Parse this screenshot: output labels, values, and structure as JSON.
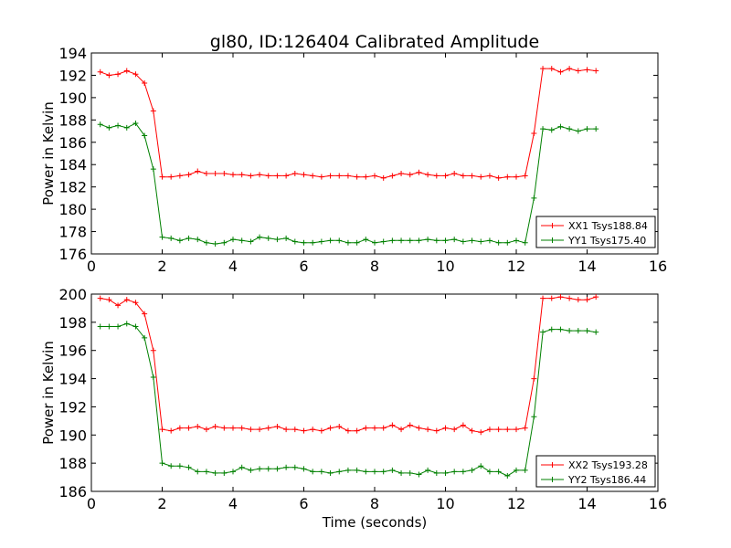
{
  "chart_data": [
    {
      "type": "line",
      "title": "gl80, ID:126404 Calibrated Amplitude",
      "xlabel": "",
      "ylabel": "Power in Kelvin",
      "xlim": [
        0,
        16
      ],
      "ylim": [
        176,
        194
      ],
      "xticks": [
        "0",
        "2",
        "4",
        "6",
        "8",
        "10",
        "12",
        "14",
        "16"
      ],
      "yticks": [
        "176",
        "178",
        "180",
        "182",
        "184",
        "186",
        "188",
        "190",
        "192",
        "194"
      ],
      "grid": false,
      "legend_position": "lower-right",
      "x": [
        0.25,
        0.5,
        0.75,
        1.0,
        1.25,
        1.5,
        1.75,
        2.0,
        2.25,
        2.5,
        2.75,
        3.0,
        3.25,
        3.5,
        3.75,
        4.0,
        4.25,
        4.5,
        4.75,
        5.0,
        5.25,
        5.5,
        5.75,
        6.0,
        6.25,
        6.5,
        6.75,
        7.0,
        7.25,
        7.5,
        7.75,
        8.0,
        8.25,
        8.5,
        8.75,
        9.0,
        9.25,
        9.5,
        9.75,
        10.0,
        10.25,
        10.5,
        10.75,
        11.0,
        11.25,
        11.5,
        11.75,
        12.0,
        12.25,
        12.5,
        12.75,
        13.0,
        13.25,
        13.5,
        13.75,
        14.0,
        14.25
      ],
      "series": [
        {
          "name": "XX1 Tsys188.84",
          "color": "#ff0000",
          "values": [
            192.3,
            192.0,
            192.1,
            192.4,
            192.1,
            191.3,
            188.8,
            182.9,
            182.9,
            183.0,
            183.1,
            183.4,
            183.2,
            183.2,
            183.2,
            183.1,
            183.1,
            183.0,
            183.1,
            183.0,
            183.0,
            183.0,
            183.2,
            183.1,
            183.0,
            182.9,
            183.0,
            183.0,
            183.0,
            182.9,
            182.9,
            183.0,
            182.8,
            183.0,
            183.2,
            183.1,
            183.3,
            183.1,
            183.0,
            183.0,
            183.2,
            183.0,
            183.0,
            182.9,
            183.0,
            182.8,
            182.9,
            182.9,
            183.0,
            186.8,
            192.6,
            192.6,
            192.3,
            192.6,
            192.4,
            192.5,
            192.4
          ]
        },
        {
          "name": "YY1 Tsys175.40",
          "color": "#008000",
          "values": [
            187.6,
            187.3,
            187.5,
            187.3,
            187.7,
            186.6,
            183.6,
            177.5,
            177.4,
            177.2,
            177.4,
            177.3,
            177.0,
            176.9,
            177.0,
            177.3,
            177.2,
            177.1,
            177.5,
            177.4,
            177.3,
            177.4,
            177.1,
            177.0,
            177.0,
            177.1,
            177.2,
            177.2,
            177.0,
            177.0,
            177.3,
            177.0,
            177.1,
            177.2,
            177.2,
            177.2,
            177.2,
            177.3,
            177.2,
            177.2,
            177.3,
            177.1,
            177.2,
            177.1,
            177.2,
            177.0,
            177.0,
            177.2,
            177.0,
            181.0,
            187.2,
            187.1,
            187.4,
            187.2,
            187.0,
            187.2,
            187.2
          ]
        }
      ]
    },
    {
      "type": "line",
      "title": "",
      "xlabel": "Time (seconds)",
      "ylabel": "Power in Kelvin",
      "xlim": [
        0,
        16
      ],
      "ylim": [
        186,
        200
      ],
      "xticks": [
        "0",
        "2",
        "4",
        "6",
        "8",
        "10",
        "12",
        "14",
        "16"
      ],
      "yticks": [
        "186",
        "188",
        "190",
        "192",
        "194",
        "196",
        "198",
        "200"
      ],
      "grid": false,
      "legend_position": "lower-right",
      "x": [
        0.25,
        0.5,
        0.75,
        1.0,
        1.25,
        1.5,
        1.75,
        2.0,
        2.25,
        2.5,
        2.75,
        3.0,
        3.25,
        3.5,
        3.75,
        4.0,
        4.25,
        4.5,
        4.75,
        5.0,
        5.25,
        5.5,
        5.75,
        6.0,
        6.25,
        6.5,
        6.75,
        7.0,
        7.25,
        7.5,
        7.75,
        8.0,
        8.25,
        8.5,
        8.75,
        9.0,
        9.25,
        9.5,
        9.75,
        10.0,
        10.25,
        10.5,
        10.75,
        11.0,
        11.25,
        11.5,
        11.75,
        12.0,
        12.25,
        12.5,
        12.75,
        13.0,
        13.25,
        13.5,
        13.75,
        14.0,
        14.25
      ],
      "series": [
        {
          "name": "XX2 Tsys193.28",
          "color": "#ff0000",
          "values": [
            199.7,
            199.6,
            199.2,
            199.6,
            199.4,
            198.6,
            196.0,
            190.4,
            190.3,
            190.5,
            190.5,
            190.6,
            190.4,
            190.6,
            190.5,
            190.5,
            190.5,
            190.4,
            190.4,
            190.5,
            190.6,
            190.4,
            190.4,
            190.3,
            190.4,
            190.3,
            190.5,
            190.6,
            190.3,
            190.3,
            190.5,
            190.5,
            190.5,
            190.7,
            190.4,
            190.7,
            190.5,
            190.4,
            190.3,
            190.5,
            190.4,
            190.7,
            190.3,
            190.2,
            190.4,
            190.4,
            190.4,
            190.4,
            190.5,
            194.0,
            199.7,
            199.7,
            199.8,
            199.7,
            199.6,
            199.6,
            199.8
          ]
        },
        {
          "name": "YY2 Tsys186.44",
          "color": "#008000",
          "values": [
            197.7,
            197.7,
            197.7,
            197.9,
            197.7,
            196.9,
            194.1,
            188.0,
            187.8,
            187.8,
            187.7,
            187.4,
            187.4,
            187.3,
            187.3,
            187.4,
            187.7,
            187.5,
            187.6,
            187.6,
            187.6,
            187.7,
            187.7,
            187.6,
            187.4,
            187.4,
            187.3,
            187.4,
            187.5,
            187.5,
            187.4,
            187.4,
            187.4,
            187.5,
            187.3,
            187.3,
            187.2,
            187.5,
            187.3,
            187.3,
            187.4,
            187.4,
            187.5,
            187.8,
            187.4,
            187.4,
            187.1,
            187.5,
            187.5,
            191.3,
            197.3,
            197.5,
            197.5,
            197.4,
            197.4,
            197.4,
            197.3
          ]
        }
      ]
    }
  ]
}
